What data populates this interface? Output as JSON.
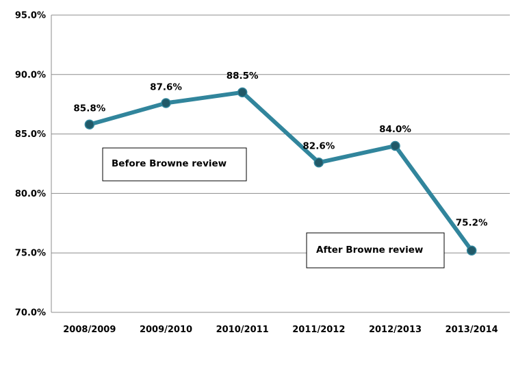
{
  "chart_data": {
    "type": "line",
    "title": "",
    "xlabel": "",
    "ylabel": "",
    "categories": [
      "2008/2009",
      "2009/2010",
      "2010/2011",
      "2011/2012",
      "2012/2013",
      "2013/2014"
    ],
    "series": [
      {
        "values": [
          85.8,
          87.6,
          88.5,
          82.6,
          84.0,
          75.2
        ],
        "data_labels": [
          "85.8%",
          "87.6%",
          "88.5%",
          "82.6%",
          "84.0%",
          "75.2%"
        ],
        "color": "#31859c",
        "marker_color": "#215968",
        "marker": "circle"
      }
    ],
    "ylim": [
      70,
      95
    ],
    "yticks": [
      70,
      75,
      80,
      85,
      90,
      95
    ],
    "ytick_labels": [
      "70.0%",
      "75.0%",
      "80.0%",
      "85.0%",
      "90.0%",
      "95.0%"
    ],
    "grid": true,
    "legend": "none",
    "annotations": [
      {
        "text": "Before Browne review",
        "position": "left-middle"
      },
      {
        "text": "After Browne review",
        "position": "right-lower"
      }
    ]
  }
}
